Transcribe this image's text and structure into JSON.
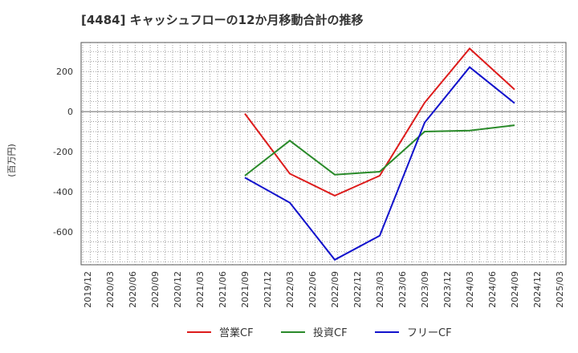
{
  "chart_data": {
    "type": "line",
    "title": "[4484]  キャッシュフローの12か月移動合計の推移",
    "ylabel": "(百万円)",
    "xlabel": "",
    "ylim": [
      -765,
      345
    ],
    "yticks": [
      200,
      0,
      -200,
      -400,
      -600
    ],
    "grid": true,
    "legend_position": "bottom",
    "xticks": [
      "2019/12",
      "2020/03",
      "2020/06",
      "2020/09",
      "2020/12",
      "2021/03",
      "2021/06",
      "2021/09",
      "2021/12",
      "2022/03",
      "2022/06",
      "2022/09",
      "2022/12",
      "2023/03",
      "2023/06",
      "2023/09",
      "2023/12",
      "2024/03",
      "2024/06",
      "2024/09",
      "2024/12",
      "2025/03"
    ],
    "series": [
      {
        "name": "営業CF",
        "color": "#dd1c1c",
        "x": [
          "2021/09",
          "2022/03",
          "2022/09",
          "2023/03",
          "2023/09",
          "2024/03",
          "2024/09"
        ],
        "values": [
          -10,
          -310,
          -420,
          -320,
          45,
          315,
          110
        ]
      },
      {
        "name": "投資CF",
        "color": "#2a8a2a",
        "x": [
          "2021/09",
          "2022/03",
          "2022/09",
          "2023/03",
          "2023/09",
          "2024/03",
          "2024/09"
        ],
        "values": [
          -320,
          -145,
          -315,
          -300,
          -100,
          -95,
          -68
        ]
      },
      {
        "name": "フリーCF",
        "color": "#1212cc",
        "x": [
          "2021/09",
          "2022/03",
          "2022/09",
          "2023/03",
          "2023/09",
          "2024/03",
          "2024/09"
        ],
        "values": [
          -330,
          -455,
          -740,
          -620,
          -55,
          222,
          42
        ]
      }
    ]
  }
}
